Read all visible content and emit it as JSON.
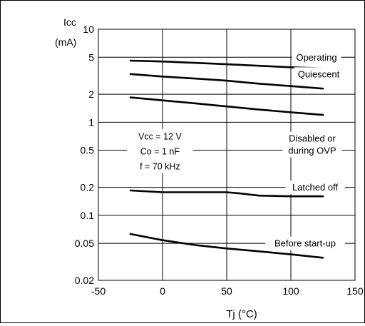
{
  "chart_data": {
    "type": "line",
    "ylabel_main": "Icc",
    "ylabel_unit": "(mA)",
    "xlabel": "Tj  (°C)",
    "xlim": [
      -50,
      150
    ],
    "ylim": [
      0.02,
      10
    ],
    "yscale": "log",
    "xticks": [
      -50,
      0,
      50,
      100,
      150
    ],
    "xtick_labels": [
      "-50",
      "0",
      "50",
      "100",
      "150"
    ],
    "yticks": [
      0.02,
      0.05,
      0.1,
      0.2,
      0.5,
      1,
      2,
      5,
      10
    ],
    "ytick_labels": [
      "0.02",
      "0.05",
      "0.1",
      "0.2",
      "0.5",
      "1",
      "2",
      "5",
      "10"
    ],
    "grid": true,
    "conditions": [
      "Vcc = 12 V",
      "Co = 1 nF",
      "f = 70 kHz"
    ],
    "series": [
      {
        "name": "Operating",
        "x": [
          -25,
          0,
          25,
          50,
          75,
          100,
          125
        ],
        "y": [
          4.6,
          4.5,
          4.35,
          4.2,
          4.05,
          3.9,
          3.8
        ]
      },
      {
        "name": "Quiescent",
        "x": [
          -25,
          0,
          25,
          50,
          75,
          100,
          125
        ],
        "y": [
          3.3,
          3.1,
          2.95,
          2.8,
          2.6,
          2.45,
          2.3
        ]
      },
      {
        "name": "Disabled or during OVP",
        "x": [
          -25,
          0,
          25,
          50,
          75,
          100,
          125
        ],
        "y": [
          1.85,
          1.72,
          1.6,
          1.48,
          1.37,
          1.28,
          1.2
        ]
      },
      {
        "name": "Latched off",
        "x": [
          -25,
          -10,
          0,
          25,
          50,
          60,
          75,
          100,
          125
        ],
        "y": [
          0.185,
          0.18,
          0.177,
          0.177,
          0.177,
          0.172,
          0.163,
          0.16,
          0.16
        ]
      },
      {
        "name": "Before start-up",
        "x": [
          -25,
          0,
          25,
          50,
          75,
          100,
          125
        ],
        "y": [
          0.063,
          0.054,
          0.048,
          0.044,
          0.041,
          0.038,
          0.035
        ]
      }
    ]
  },
  "colors": {
    "line": "#000000",
    "grid": "#000000",
    "background": "#ffffff"
  }
}
